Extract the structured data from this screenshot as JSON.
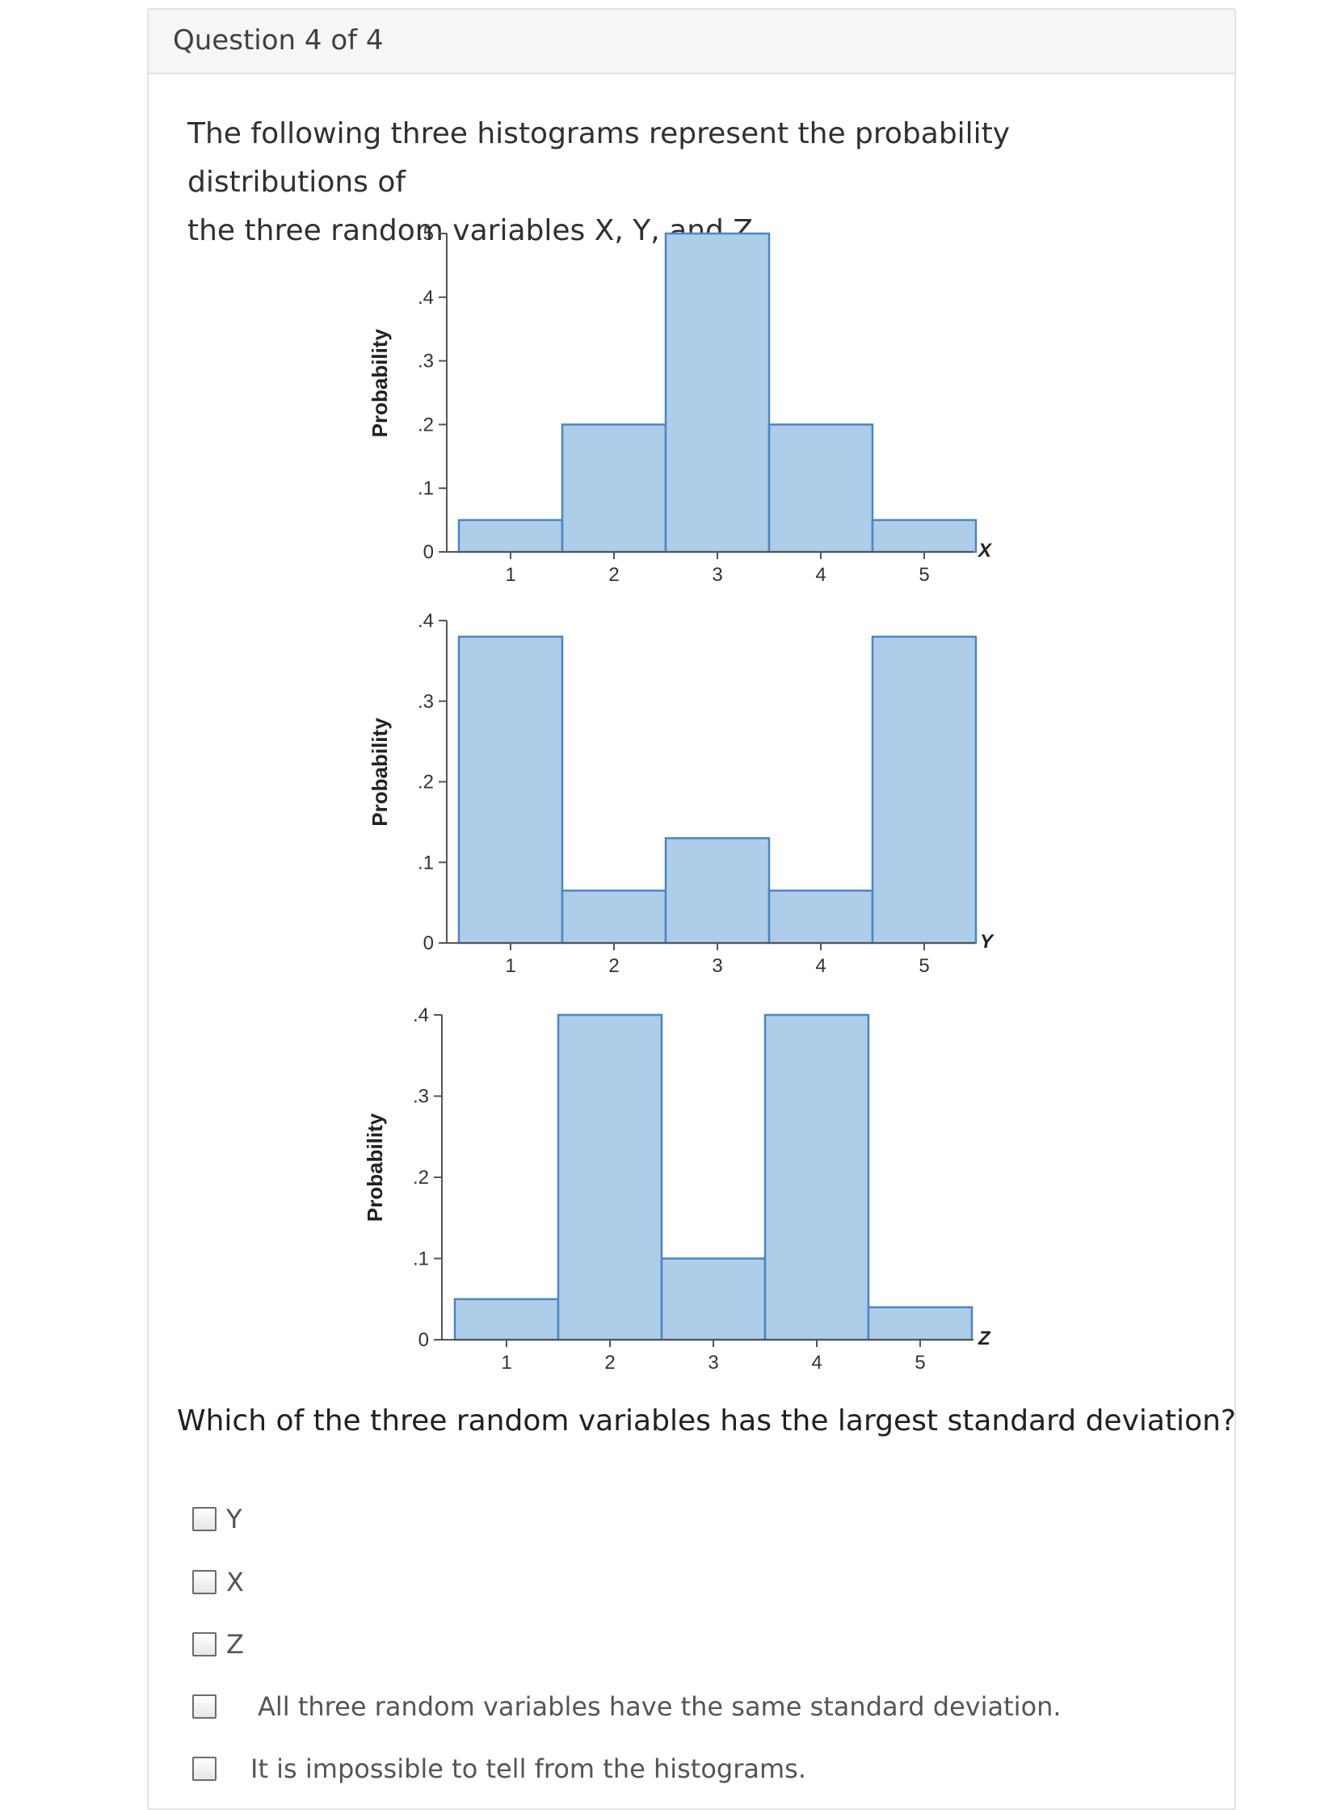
{
  "header": {
    "title": "Question 4 of 4"
  },
  "prompt": {
    "line1": "The following three histograms represent the probability distributions of",
    "line2": "the three random variables X, Y, and Z."
  },
  "chart_data": [
    {
      "type": "bar",
      "title": "",
      "xlabel": "X",
      "ylabel": "Probability",
      "categories": [
        "1",
        "2",
        "3",
        "4",
        "5"
      ],
      "values": [
        0.05,
        0.2,
        0.5,
        0.2,
        0.05
      ],
      "ylim": [
        0,
        0.5
      ],
      "yticks": [
        ".5",
        ".4",
        ".3",
        ".2",
        ".1",
        "0"
      ],
      "ytick_values": [
        0.5,
        0.4,
        0.3,
        0.2,
        0.1,
        0
      ],
      "grid": false
    },
    {
      "type": "bar",
      "title": "",
      "xlabel": "Y",
      "ylabel": "Probability",
      "categories": [
        "1",
        "2",
        "3",
        "4",
        "5"
      ],
      "values": [
        0.38,
        0.065,
        0.13,
        0.065,
        0.38
      ],
      "ylim": [
        0,
        0.4
      ],
      "yticks": [
        ".4",
        ".3",
        ".2",
        ".1",
        "0"
      ],
      "ytick_values": [
        0.4,
        0.3,
        0.2,
        0.1,
        0
      ],
      "grid": false
    },
    {
      "type": "bar",
      "title": "",
      "xlabel": "Z",
      "ylabel": "Probability",
      "categories": [
        "1",
        "2",
        "3",
        "4",
        "5"
      ],
      "values": [
        0.05,
        0.4,
        0.1,
        0.4,
        0.04
      ],
      "ylim": [
        0,
        0.4
      ],
      "yticks": [
        ".4",
        ".3",
        ".2",
        ".1",
        "0"
      ],
      "ytick_values": [
        0.4,
        0.3,
        0.2,
        0.1,
        0
      ],
      "grid": false
    }
  ],
  "question": {
    "text": "Which of the three random variables has the largest standard deviation?"
  },
  "options": [
    {
      "label": "Y",
      "checked": false
    },
    {
      "label": "X",
      "checked": false
    },
    {
      "label": "Z",
      "checked": false
    },
    {
      "label": "All three random variables have the same standard deviation.",
      "checked": false
    },
    {
      "label": "It is impossible to tell from the histograms.",
      "checked": false
    }
  ],
  "colors": {
    "bar_fill": "#aecde9",
    "bar_stroke": "#4a86c5",
    "axis": "#555555",
    "text": "#333333"
  }
}
